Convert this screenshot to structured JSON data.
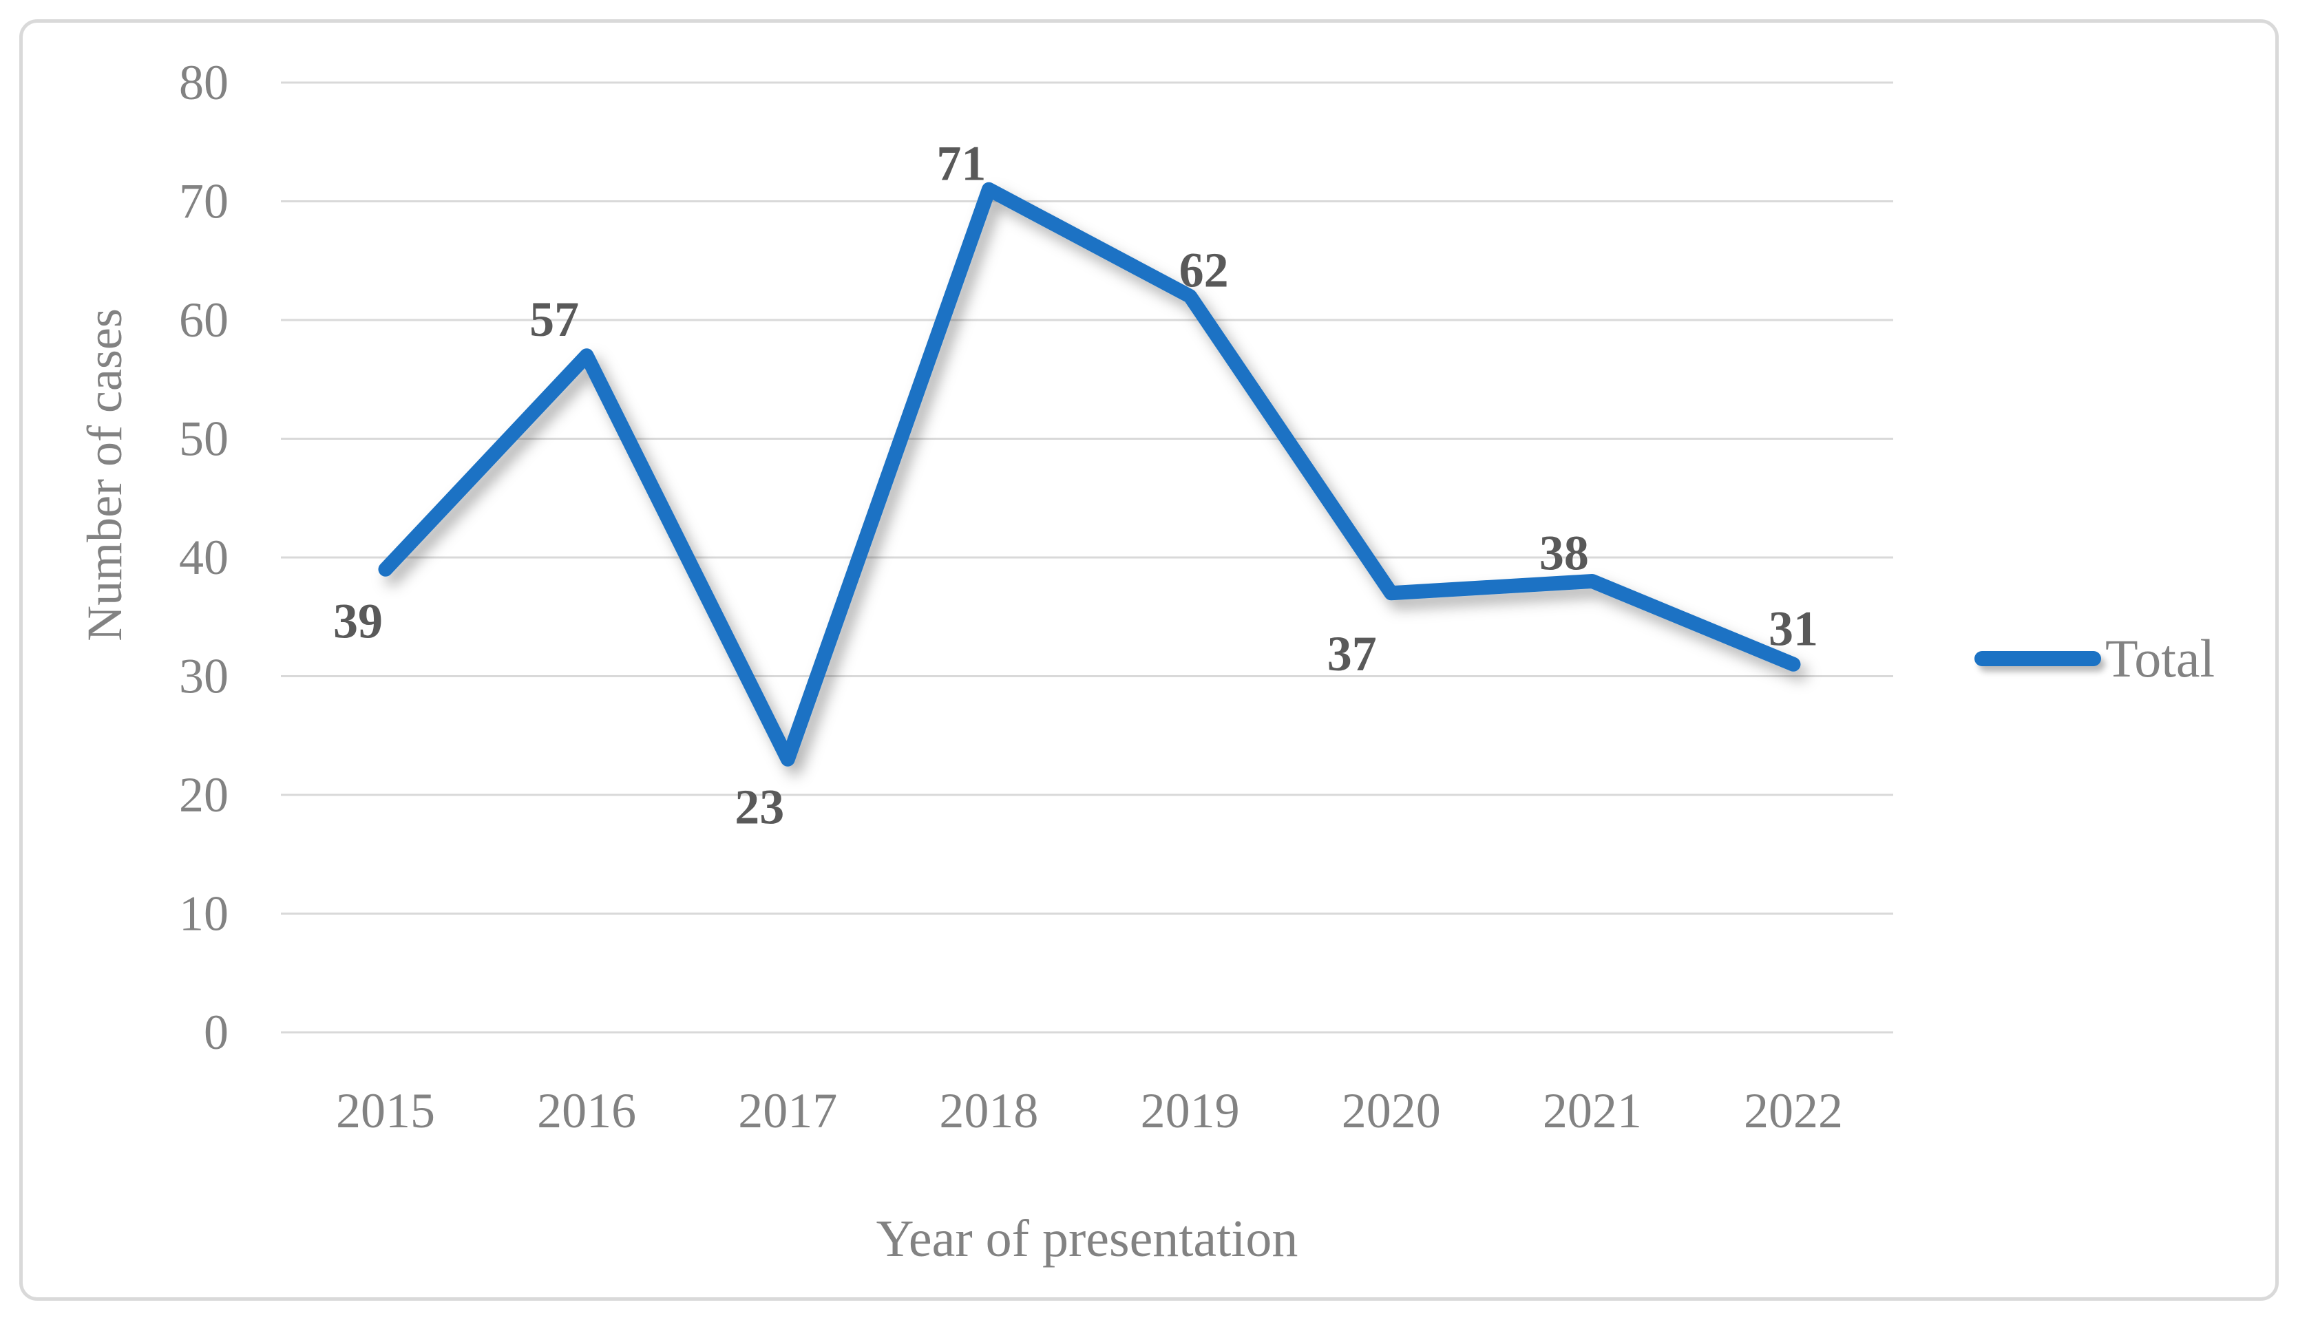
{
  "chart_data": {
    "type": "line",
    "title": "",
    "categories": [
      "2015",
      "2016",
      "2017",
      "2018",
      "2019",
      "2020",
      "2021",
      "2022"
    ],
    "series": [
      {
        "name": "Total",
        "values": [
          39,
          57,
          23,
          71,
          62,
          37,
          38,
          31
        ]
      }
    ],
    "xlabel": "Year of presentation",
    "ylabel": "Number of cases",
    "ylim": [
      0,
      80
    ],
    "ytick_step": 10,
    "grid": true,
    "data_labels_shown": true,
    "legend_position": "middle-right",
    "colors": {
      "line": "#1b72c4",
      "data_label": "#595959",
      "axis_text": "#828282",
      "gridline": "#d9d9d9",
      "border": "#d9d9d9",
      "background": "#ffffff"
    }
  }
}
